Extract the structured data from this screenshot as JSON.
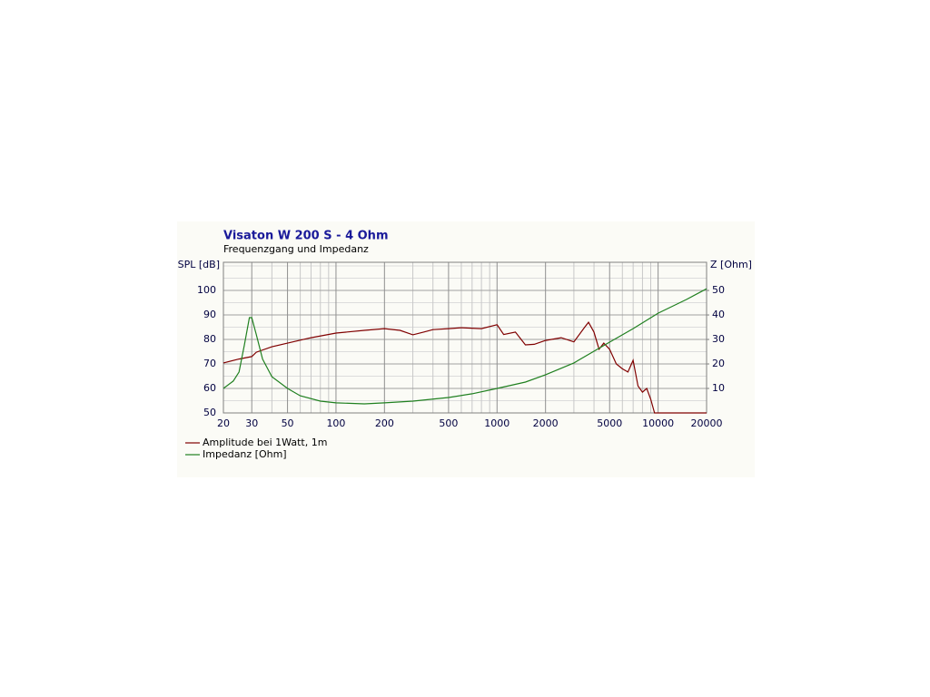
{
  "chart_data": {
    "type": "line",
    "title": "Visaton W 200 S - 4 Ohm",
    "subtitle": "Frequenzgang und Impedanz",
    "ylabel": "SPL [dB]",
    "y2label": "Z [Ohm]",
    "xscale": "log",
    "xlim": [
      20,
      20000
    ],
    "xticks": [
      20,
      30,
      50,
      100,
      200,
      500,
      1000,
      2000,
      5000,
      10000,
      20000
    ],
    "x_minor_grid": [
      40,
      60,
      70,
      80,
      90,
      300,
      400,
      600,
      700,
      800,
      900,
      3000,
      4000,
      6000,
      7000,
      8000,
      9000
    ],
    "ylim": [
      50,
      111.5
    ],
    "yticks": [
      50,
      60,
      70,
      80,
      90,
      100
    ],
    "y_minor_grid": [
      55,
      65,
      75,
      85,
      95,
      105,
      110
    ],
    "y2lim": [
      0,
      61.5
    ],
    "y2ticks": [
      10,
      20,
      30,
      40,
      50
    ],
    "grid": true,
    "legend": "bottom-left",
    "series": [
      {
        "name": "Amplitude bei 1Watt, 1m",
        "color": "#800000",
        "x": [
          20,
          25,
          30,
          32,
          40,
          50,
          70,
          100,
          150,
          200,
          250,
          300,
          350,
          400,
          500,
          600,
          800,
          1000,
          1100,
          1300,
          1500,
          1700,
          2000,
          2500,
          3000,
          3500,
          3700,
          4000,
          4300,
          4600,
          5000,
          5500,
          6000,
          6500,
          7000,
          7500,
          8000,
          8500,
          9000,
          9500,
          10000,
          20000
        ],
        "values": [
          70.4,
          72,
          73,
          74.8,
          77,
          78.5,
          80.7,
          82.6,
          83.7,
          84.4,
          83.7,
          81.9,
          83,
          84,
          84.4,
          84.8,
          84.4,
          86,
          82,
          83,
          77.8,
          78,
          79.6,
          80.7,
          79,
          85,
          87,
          83,
          76,
          78.5,
          76,
          70,
          68,
          66.7,
          71.5,
          61,
          58.5,
          60,
          55.6,
          50,
          50,
          50
        ]
      },
      {
        "name": "Impedanz [Ohm]",
        "color": "#208020",
        "axis": "y2",
        "x": [
          20,
          23,
          25,
          27,
          29,
          30,
          32,
          35,
          40,
          50,
          60,
          80,
          100,
          150,
          200,
          300,
          500,
          700,
          1000,
          1500,
          2000,
          3000,
          5000,
          7000,
          10000,
          15000,
          20000
        ],
        "values": [
          10,
          13,
          16.7,
          27.8,
          38.9,
          38.9,
          32,
          22,
          14.8,
          10,
          7,
          4.8,
          4.1,
          3.7,
          4.1,
          4.8,
          6.3,
          7.8,
          10,
          12.6,
          15.6,
          20.4,
          28.9,
          34.4,
          40.7,
          46.3,
          50.7
        ]
      }
    ]
  }
}
